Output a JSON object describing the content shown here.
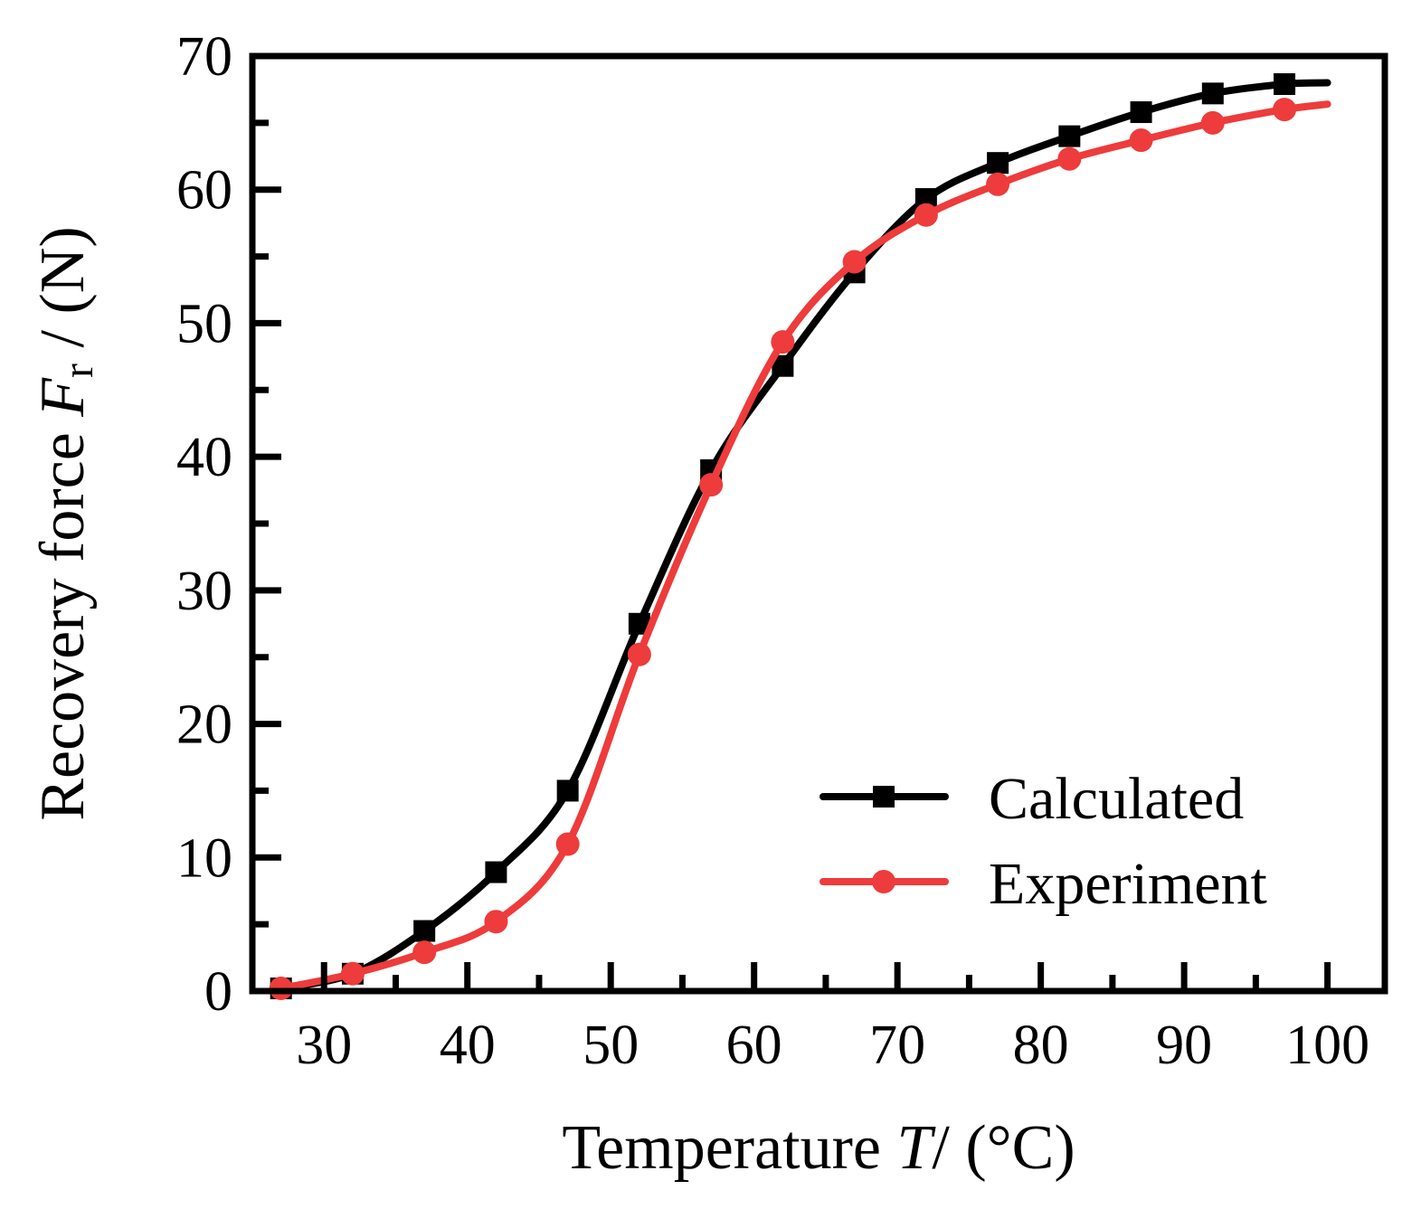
{
  "chart_data": {
    "type": "line",
    "title": "",
    "xlabel": {
      "prefix": "Temperature ",
      "var": "T",
      "suffix": "/ (°C)"
    },
    "ylabel": {
      "prefix": "Recovery force ",
      "var": "F",
      "sub": "r",
      "suffix": " / (N)"
    },
    "xlim": [
      25,
      104
    ],
    "ylim": [
      0,
      70
    ],
    "xticks": [
      30,
      40,
      50,
      60,
      70,
      80,
      90,
      100
    ],
    "yticks": [
      0,
      10,
      20,
      30,
      40,
      50,
      60,
      70
    ],
    "grid": false,
    "legend_position": "bottom-right",
    "series": [
      {
        "name": "Calculated",
        "color": "#000000",
        "marker": "square",
        "x": [
          27,
          32,
          37,
          42,
          47,
          52,
          57,
          62,
          67,
          72,
          77,
          82,
          87,
          92,
          97,
          100
        ],
        "y": [
          0.2,
          1.3,
          4.5,
          8.9,
          15.0,
          27.5,
          39.0,
          46.8,
          53.8,
          59.3,
          62.0,
          64.0,
          65.8,
          67.2,
          67.9,
          68.0
        ],
        "marker_x": [
          27,
          32,
          37,
          42,
          47,
          52,
          57,
          62,
          67,
          72,
          77,
          82,
          87,
          92,
          97
        ]
      },
      {
        "name": "Experiment",
        "color": "#ee3b3b",
        "marker": "circle",
        "x": [
          27,
          32,
          37,
          42,
          47,
          52,
          57,
          62,
          67,
          72,
          77,
          82,
          87,
          92,
          97,
          100
        ],
        "y": [
          0.2,
          1.3,
          2.9,
          5.2,
          11.0,
          25.2,
          37.9,
          48.6,
          54.6,
          58.1,
          60.4,
          62.3,
          63.7,
          65.0,
          66.0,
          66.4
        ],
        "marker_x": [
          27,
          32,
          37,
          42,
          47,
          52,
          57,
          62,
          67,
          72,
          77,
          82,
          87,
          92,
          97
        ]
      }
    ]
  }
}
